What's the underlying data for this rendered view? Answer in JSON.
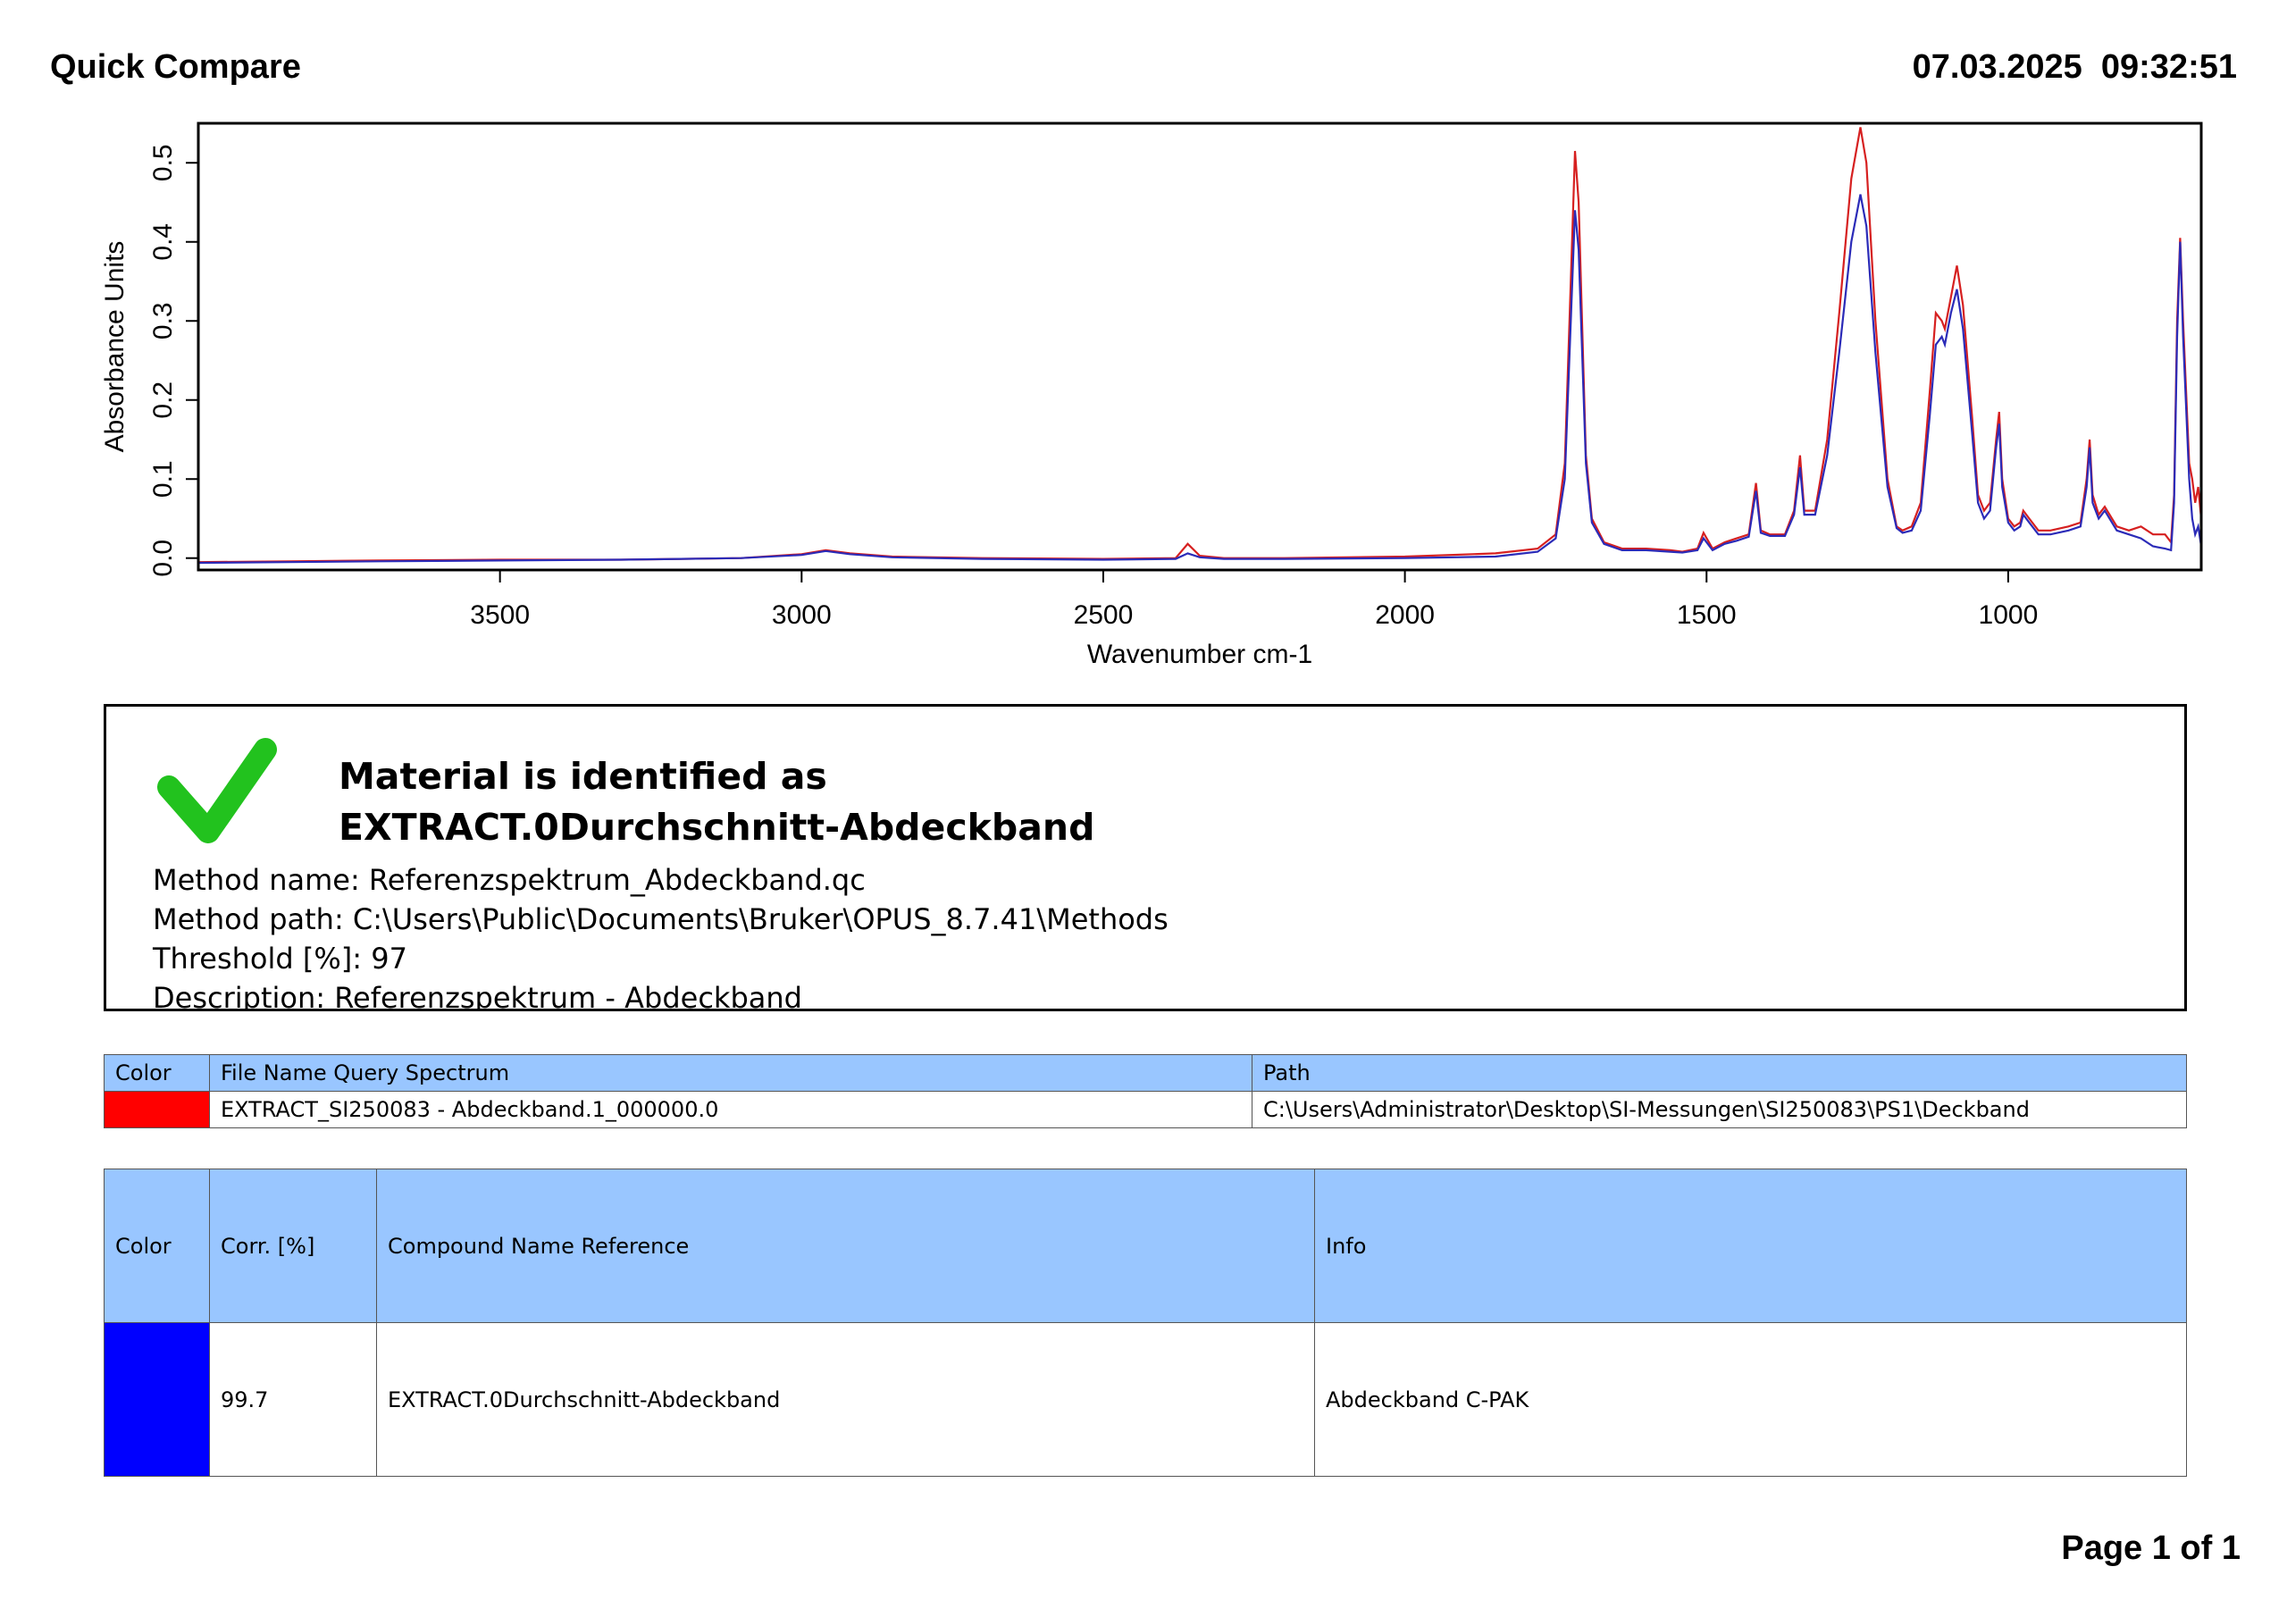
{
  "header": {
    "title": "Quick Compare",
    "datetime": "07.03.2025  09:32:51"
  },
  "chart_data": {
    "type": "line",
    "xlabel": "Wavenumber cm-1",
    "ylabel": "Absorbance Units",
    "xlim": [
      4000,
      680
    ],
    "ylim": [
      -0.015,
      0.55
    ],
    "x_ticks": [
      "3500",
      "3000",
      "2500",
      "2000",
      "1500",
      "1000"
    ],
    "y_ticks": [
      "0.0",
      "0.1",
      "0.2",
      "0.3",
      "0.4",
      "0.5"
    ],
    "x_tick_values": [
      3500,
      3000,
      2500,
      2000,
      1500,
      1000
    ],
    "y_tick_values": [
      0.0,
      0.1,
      0.2,
      0.3,
      0.4,
      0.5
    ],
    "series": [
      {
        "color": "#d62020",
        "x": [
          4000,
          3850,
          3700,
          3500,
          3300,
          3100,
          3000,
          2960,
          2920,
          2850,
          2700,
          2500,
          2380,
          2360,
          2340,
          2300,
          2200,
          2000,
          1850,
          1780,
          1750,
          1735,
          1725,
          1718,
          1712,
          1700,
          1690,
          1670,
          1640,
          1600,
          1560,
          1540,
          1515,
          1505,
          1490,
          1470,
          1450,
          1430,
          1418,
          1410,
          1395,
          1370,
          1355,
          1345,
          1338,
          1320,
          1300,
          1280,
          1260,
          1245,
          1235,
          1220,
          1200,
          1185,
          1175,
          1160,
          1145,
          1130,
          1120,
          1110,
          1105,
          1095,
          1085,
          1075,
          1060,
          1050,
          1040,
          1030,
          1020,
          1015,
          1010,
          1000,
          990,
          980,
          975,
          965,
          950,
          930,
          900,
          880,
          870,
          865,
          860,
          850,
          840,
          820,
          800,
          780,
          760,
          740,
          730,
          725,
          720,
          715,
          710,
          700,
          695,
          690,
          685,
          680
        ],
        "y": [
          -0.005,
          -0.004,
          -0.003,
          -0.002,
          -0.002,
          0.0,
          0.005,
          0.01,
          0.006,
          0.002,
          0.0,
          -0.001,
          0.0,
          0.018,
          0.003,
          0.0,
          0.0,
          0.002,
          0.006,
          0.012,
          0.03,
          0.12,
          0.35,
          0.515,
          0.45,
          0.13,
          0.05,
          0.02,
          0.012,
          0.012,
          0.01,
          0.008,
          0.012,
          0.032,
          0.012,
          0.02,
          0.025,
          0.03,
          0.095,
          0.035,
          0.03,
          0.03,
          0.06,
          0.13,
          0.06,
          0.06,
          0.15,
          0.31,
          0.48,
          0.545,
          0.5,
          0.3,
          0.1,
          0.04,
          0.035,
          0.04,
          0.07,
          0.21,
          0.31,
          0.3,
          0.29,
          0.33,
          0.37,
          0.32,
          0.18,
          0.08,
          0.06,
          0.07,
          0.15,
          0.185,
          0.1,
          0.05,
          0.04,
          0.045,
          0.06,
          0.05,
          0.035,
          0.035,
          0.04,
          0.045,
          0.1,
          0.15,
          0.08,
          0.055,
          0.065,
          0.04,
          0.035,
          0.04,
          0.03,
          0.03,
          0.02,
          0.08,
          0.3,
          0.405,
          0.3,
          0.12,
          0.1,
          0.07,
          0.09,
          0.05
        ]
      },
      {
        "color": "#2b2bb8",
        "x": [
          4000,
          3850,
          3700,
          3500,
          3300,
          3100,
          3000,
          2960,
          2920,
          2850,
          2700,
          2500,
          2380,
          2360,
          2340,
          2300,
          2200,
          2000,
          1850,
          1780,
          1750,
          1735,
          1725,
          1718,
          1712,
          1700,
          1690,
          1670,
          1640,
          1600,
          1560,
          1540,
          1515,
          1505,
          1490,
          1470,
          1450,
          1430,
          1418,
          1410,
          1395,
          1370,
          1355,
          1345,
          1338,
          1320,
          1300,
          1280,
          1260,
          1245,
          1235,
          1220,
          1200,
          1185,
          1175,
          1160,
          1145,
          1130,
          1120,
          1110,
          1105,
          1095,
          1085,
          1075,
          1060,
          1050,
          1040,
          1030,
          1020,
          1015,
          1010,
          1000,
          990,
          980,
          975,
          965,
          950,
          930,
          900,
          880,
          870,
          865,
          860,
          850,
          840,
          820,
          800,
          780,
          760,
          740,
          730,
          725,
          720,
          715,
          710,
          700,
          695,
          690,
          685,
          680
        ],
        "y": [
          -0.006,
          -0.005,
          -0.004,
          -0.003,
          -0.002,
          0.0,
          0.004,
          0.009,
          0.005,
          0.001,
          -0.001,
          -0.002,
          -0.001,
          0.006,
          0.001,
          -0.001,
          -0.001,
          0.0,
          0.002,
          0.008,
          0.025,
          0.1,
          0.3,
          0.44,
          0.39,
          0.12,
          0.045,
          0.018,
          0.01,
          0.01,
          0.008,
          0.007,
          0.01,
          0.025,
          0.01,
          0.018,
          0.022,
          0.027,
          0.085,
          0.032,
          0.028,
          0.028,
          0.055,
          0.115,
          0.055,
          0.055,
          0.13,
          0.26,
          0.4,
          0.46,
          0.42,
          0.26,
          0.09,
          0.038,
          0.032,
          0.035,
          0.06,
          0.18,
          0.27,
          0.28,
          0.27,
          0.31,
          0.34,
          0.29,
          0.16,
          0.07,
          0.05,
          0.06,
          0.14,
          0.17,
          0.09,
          0.045,
          0.035,
          0.04,
          0.055,
          0.045,
          0.03,
          0.03,
          0.035,
          0.04,
          0.09,
          0.14,
          0.07,
          0.05,
          0.06,
          0.035,
          0.03,
          0.025,
          0.015,
          0.012,
          0.01,
          0.07,
          0.28,
          0.4,
          0.28,
          0.1,
          0.05,
          0.03,
          0.04,
          0.015
        ]
      }
    ]
  },
  "result": {
    "title_line1": "Material is identified as",
    "title_line2": "EXTRACT.0Durchschnitt-Abdeckband",
    "method_name": "Method name: Referenzspektrum_Abdeckband.qc",
    "method_path": "Method path: C:\\Users\\Public\\Documents\\Bruker\\OPUS_8.7.41\\Methods",
    "threshold": "Threshold [%]: 97",
    "description": "Description: Referenzspektrum - Abdeckband",
    "check_color": "#22c21e"
  },
  "query_table": {
    "headers": {
      "color": "Color",
      "file": "File Name Query Spectrum",
      "path": "Path"
    },
    "row": {
      "color": "#ff0000",
      "file": "EXTRACT_SI250083 - Abdeckband.1_000000.0",
      "path": "C:\\Users\\Administrator\\Desktop\\SI-Messungen\\SI250083\\PS1\\Deckband"
    }
  },
  "ref_table": {
    "headers": {
      "color": "Color",
      "corr": "Corr. [%]",
      "compound": "Compound Name Reference",
      "info": "Info"
    },
    "row": {
      "color": "#0000ff",
      "corr": "99.7",
      "compound": "EXTRACT.0Durchschnitt-Abdeckband",
      "info": "Abdeckband C-PAK"
    }
  },
  "footer": {
    "page": "Page 1 of 1"
  }
}
